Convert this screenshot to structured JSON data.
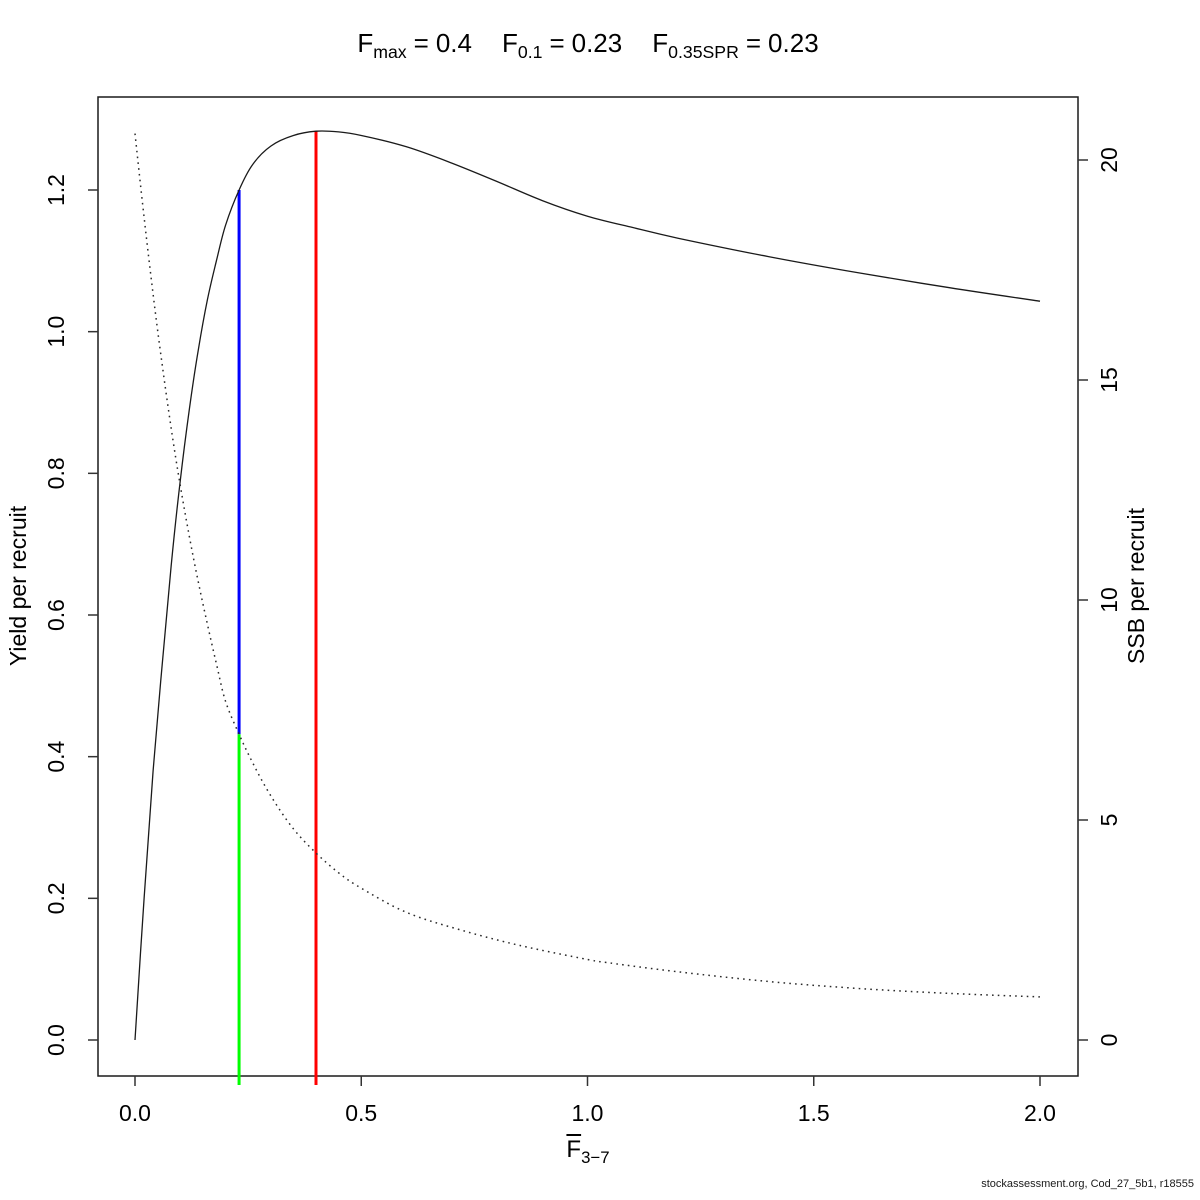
{
  "title": {
    "segments": [
      {
        "base": "F",
        "sub": "max",
        "eq": "=",
        "value": "0.4"
      },
      {
        "base": "F",
        "sub": "0.1",
        "eq": "=",
        "value": "0.23"
      },
      {
        "base": "F",
        "sub": "0.35SPR",
        "eq": "=",
        "value": "0.23"
      }
    ]
  },
  "xlabel": {
    "base": "F",
    "sub": "3−7"
  },
  "caption": "stockassessment.org, Cod_27_5b1, r18555",
  "chart_data": {
    "type": "line",
    "title": "Fmax = 0.4   F0.1 = 0.23   F0.35SPR = 0.23",
    "reference_points": {
      "f_max": 0.4,
      "f_0.1": 0.23,
      "f_0.35spr": 0.23
    },
    "x_axis": {
      "label": "mean F ages 3-7",
      "range": [
        0,
        2.0
      ],
      "ticks": [
        0,
        0.5,
        1.0,
        1.5,
        2.0
      ],
      "tick_labels": [
        "0.0",
        "0.5",
        "1.0",
        "1.5",
        "2.0"
      ]
    },
    "y_left": {
      "label": "Yield per recruit",
      "range": [
        0,
        1.3
      ],
      "ticks": [
        0,
        0.2,
        0.4,
        0.6,
        0.8,
        1.0,
        1.2
      ],
      "tick_labels": [
        "0.0",
        "0.2",
        "0.4",
        "0.6",
        "0.8",
        "1.0",
        "1.2"
      ]
    },
    "y_right": {
      "label": "SSB per recruit",
      "range": [
        0,
        20.6
      ],
      "ticks": [
        0,
        5,
        10,
        15,
        20
      ],
      "tick_labels": [
        "0",
        "5",
        "10",
        "15",
        "20"
      ]
    },
    "grid": false,
    "legend": "none",
    "series": [
      {
        "name": "Yield per recruit",
        "axis": "left",
        "style": "solid",
        "color": "#1a1a1a",
        "points": [
          [
            0.0,
            0.0
          ],
          [
            0.02,
            0.2
          ],
          [
            0.04,
            0.38
          ],
          [
            0.06,
            0.53
          ],
          [
            0.08,
            0.67
          ],
          [
            0.1,
            0.79
          ],
          [
            0.12,
            0.89
          ],
          [
            0.14,
            0.975
          ],
          [
            0.16,
            1.045
          ],
          [
            0.18,
            1.1
          ],
          [
            0.2,
            1.15
          ],
          [
            0.23,
            1.2
          ],
          [
            0.26,
            1.236
          ],
          [
            0.3,
            1.262
          ],
          [
            0.35,
            1.277
          ],
          [
            0.4,
            1.283
          ],
          [
            0.45,
            1.282
          ],
          [
            0.5,
            1.277
          ],
          [
            0.6,
            1.261
          ],
          [
            0.7,
            1.238
          ],
          [
            0.8,
            1.212
          ],
          [
            0.9,
            1.185
          ],
          [
            1.0,
            1.163
          ],
          [
            1.1,
            1.147
          ],
          [
            1.2,
            1.132
          ],
          [
            1.4,
            1.106
          ],
          [
            1.6,
            1.083
          ],
          [
            1.8,
            1.062
          ],
          [
            2.0,
            1.043
          ]
        ]
      },
      {
        "name": "SSB per recruit",
        "axis": "right",
        "style": "dotted",
        "color": "#2a2a2a",
        "points": [
          [
            0.0,
            20.6
          ],
          [
            0.02,
            18.7
          ],
          [
            0.04,
            16.95
          ],
          [
            0.06,
            15.35
          ],
          [
            0.08,
            13.9
          ],
          [
            0.1,
            12.6
          ],
          [
            0.12,
            11.45
          ],
          [
            0.14,
            10.4
          ],
          [
            0.16,
            9.45
          ],
          [
            0.18,
            8.55
          ],
          [
            0.2,
            7.7
          ],
          [
            0.23,
            6.95
          ],
          [
            0.26,
            6.3
          ],
          [
            0.3,
            5.55
          ],
          [
            0.35,
            4.8
          ],
          [
            0.4,
            4.25
          ],
          [
            0.45,
            3.8
          ],
          [
            0.5,
            3.45
          ],
          [
            0.6,
            2.9
          ],
          [
            0.72,
            2.5
          ],
          [
            0.85,
            2.15
          ],
          [
            1.0,
            1.83
          ],
          [
            1.05,
            1.75
          ],
          [
            1.2,
            1.55
          ],
          [
            1.4,
            1.33
          ],
          [
            1.6,
            1.17
          ],
          [
            1.8,
            1.06
          ],
          [
            2.0,
            0.98
          ]
        ]
      }
    ],
    "ref_lines": [
      {
        "name": "fmax-line",
        "color": "#ff0000",
        "x": 0.4,
        "top": {
          "axis": "left",
          "value": 1.283
        },
        "bottom": null
      },
      {
        "name": "f01-upper-line",
        "color": "#0000ff",
        "x": 0.23,
        "top": {
          "axis": "left",
          "value": 1.2
        },
        "bottom": {
          "axis": "right",
          "value": 6.95
        }
      },
      {
        "name": "f01-lower-line",
        "color": "#00ff00",
        "x": 0.23,
        "top": {
          "axis": "right",
          "value": 6.95
        },
        "bottom": null
      }
    ]
  }
}
